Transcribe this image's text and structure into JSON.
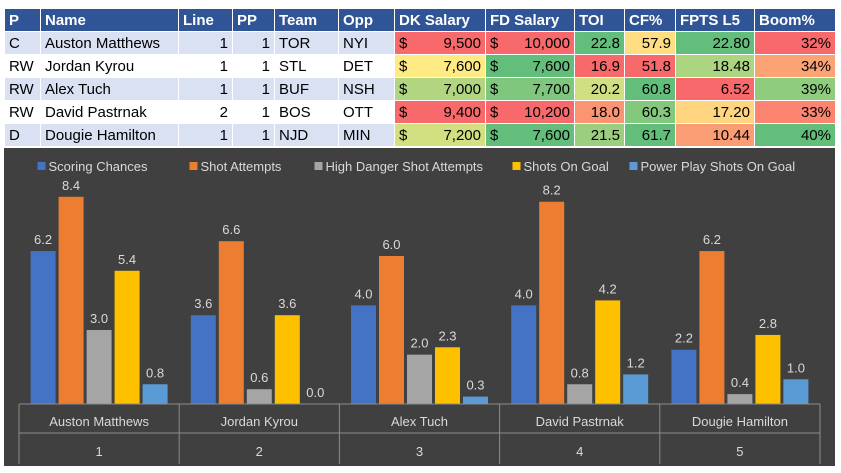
{
  "table": {
    "headers": [
      "P",
      "Name",
      "Line",
      "PP",
      "Team",
      "Opp",
      "DK Salary",
      "FD Salary",
      "TOI",
      "CF%",
      "FPTS L5",
      "Boom%"
    ],
    "currency_symbol": "$",
    "rows": [
      {
        "pos": "C",
        "name": "Auston Matthews",
        "line": "1",
        "pp": "1",
        "team": "TOR",
        "opp": "NYI",
        "dk": "9,500",
        "fd": "10,000",
        "toi": "22.8",
        "cf": "57.9",
        "fpts": "22.80",
        "boom": "32%"
      },
      {
        "pos": "RW",
        "name": "Jordan Kyrou",
        "line": "1",
        "pp": "1",
        "team": "STL",
        "opp": "DET",
        "dk": "7,600",
        "fd": "7,600",
        "toi": "16.9",
        "cf": "51.8",
        "fpts": "18.48",
        "boom": "34%"
      },
      {
        "pos": "RW",
        "name": "Alex Tuch",
        "line": "1",
        "pp": "1",
        "team": "BUF",
        "opp": "NSH",
        "dk": "7,000",
        "fd": "7,700",
        "toi": "20.2",
        "cf": "60.8",
        "fpts": "6.52",
        "boom": "39%"
      },
      {
        "pos": "RW",
        "name": "David Pastrnak",
        "line": "2",
        "pp": "1",
        "team": "BOS",
        "opp": "OTT",
        "dk": "9,400",
        "fd": "10,200",
        "toi": "18.0",
        "cf": "60.3",
        "fpts": "17.20",
        "boom": "33%"
      },
      {
        "pos": "D",
        "name": "Dougie Hamilton",
        "line": "1",
        "pp": "1",
        "team": "NJD",
        "opp": "MIN",
        "dk": "7,200",
        "fd": "7,600",
        "toi": "21.5",
        "cf": "61.7",
        "fpts": "10.44",
        "boom": "40%"
      }
    ],
    "cell_colors": {
      "dk": [
        "#f8696b",
        "#ffeb84",
        "#b1d580",
        "#f8696b",
        "#d3e082"
      ],
      "fd": [
        "#f8696b",
        "#63be7b",
        "#7fc77d",
        "#f8696b",
        "#63be7b"
      ],
      "toi": [
        "#63be7b",
        "#f8696b",
        "#d0df82",
        "#fa9473",
        "#9bcf7f"
      ],
      "cf": [
        "#ffdd82",
        "#f8696b",
        "#63be7b",
        "#84c87d",
        "#63be7b"
      ],
      "fpts": [
        "#63be7b",
        "#abd580",
        "#f8696b",
        "#ffd57f",
        "#fa9c74"
      ],
      "boom": [
        "#f8696b",
        "#fca376",
        "#8fcc7e",
        "#fb8570",
        "#63be7b"
      ]
    }
  },
  "chart_data": {
    "type": "bar",
    "categories": [
      {
        "name": "Auston Matthews",
        "index": "1"
      },
      {
        "name": "Jordan Kyrou",
        "index": "2"
      },
      {
        "name": "Alex Tuch",
        "index": "3"
      },
      {
        "name": "David Pastrnak",
        "index": "4"
      },
      {
        "name": "Dougie Hamilton",
        "index": "5"
      }
    ],
    "series": [
      {
        "name": "Scoring Chances",
        "color": "#4472c4",
        "values": [
          6.2,
          3.6,
          4.0,
          4.0,
          2.2
        ]
      },
      {
        "name": "Shot Attempts",
        "color": "#ed7d31",
        "values": [
          8.4,
          6.6,
          6.0,
          8.2,
          6.2
        ]
      },
      {
        "name": "High Danger Shot Attempts",
        "color": "#a5a5a5",
        "values": [
          3.0,
          0.6,
          2.0,
          0.8,
          0.4
        ]
      },
      {
        "name": "Shots On Goal",
        "color": "#ffc000",
        "values": [
          5.4,
          3.6,
          2.3,
          4.2,
          2.8
        ]
      },
      {
        "name": "Power Play Shots On Goal",
        "color": "#5b9bd5",
        "values": [
          0.8,
          0.0,
          0.3,
          1.2,
          1.0
        ]
      }
    ],
    "ylim": [
      0,
      9
    ],
    "legend_position": "top",
    "data_labels": true,
    "background": "#404040",
    "title": "",
    "xlabel": "",
    "ylabel": ""
  }
}
